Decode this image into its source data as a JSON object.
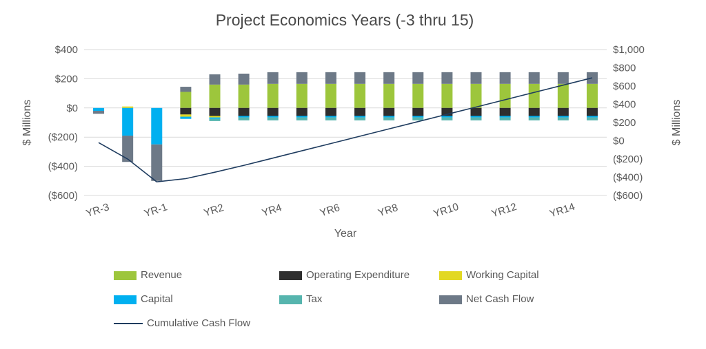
{
  "chart_data": {
    "type": "bar",
    "title": "Project Economics Years (-3 thru 15)",
    "xlabel": "Year",
    "ylabel_left": "$ Millions",
    "ylabel_right": "$ Millions",
    "categories": [
      "YR-3",
      "YR-2",
      "YR-1",
      "YR1",
      "YR2",
      "YR3",
      "YR4",
      "YR5",
      "YR6",
      "YR7",
      "YR8",
      "YR9",
      "YR10",
      "YR11",
      "YR12",
      "YR13",
      "YR14",
      "YR15"
    ],
    "x_tick_labels": [
      "YR-3",
      "YR-1",
      "YR2",
      "YR4",
      "YR6",
      "YR8",
      "YR10",
      "YR12",
      "YR14"
    ],
    "x_tick_every": 2,
    "left_axis": {
      "max": 400,
      "min": -600,
      "ticks": [
        {
          "value": 400,
          "label": "$400"
        },
        {
          "value": 200,
          "label": "$200"
        },
        {
          "value": 0,
          "label": "$0"
        },
        {
          "value": -200,
          "label": "($200)"
        },
        {
          "value": -400,
          "label": "($400)"
        },
        {
          "value": -600,
          "label": "($600)"
        }
      ]
    },
    "right_axis": {
      "max": 1000,
      "min": -600,
      "ticks": [
        {
          "value": 1000,
          "label": "$1,000"
        },
        {
          "value": 800,
          "label": "$800"
        },
        {
          "value": 600,
          "label": "$600"
        },
        {
          "value": 400,
          "label": "$400"
        },
        {
          "value": 200,
          "label": "$200"
        },
        {
          "value": 0,
          "label": "$0"
        },
        {
          "value": -200,
          "label": "($200)"
        },
        {
          "value": -400,
          "label": "($400)"
        },
        {
          "value": -600,
          "label": "($600)"
        }
      ]
    },
    "series": [
      {
        "name": "Revenue",
        "color": "#9DC63C",
        "values": [
          0,
          0,
          0,
          110,
          160,
          160,
          165,
          165,
          165,
          165,
          165,
          165,
          165,
          165,
          165,
          165,
          165,
          165
        ]
      },
      {
        "name": "Operating Expenditure",
        "color": "#2E2E2E",
        "values": [
          0,
          0,
          0,
          -45,
          -55,
          -55,
          -55,
          -55,
          -55,
          -55,
          -55,
          -55,
          -55,
          -55,
          -55,
          -55,
          -55,
          -55
        ]
      },
      {
        "name": "Working Capital",
        "color": "#E2D822",
        "values": [
          0,
          10,
          0,
          -15,
          -10,
          0,
          0,
          0,
          0,
          0,
          0,
          0,
          0,
          0,
          0,
          0,
          0,
          0
        ]
      },
      {
        "name": "Capital",
        "color": "#00B0F0",
        "values": [
          -20,
          -190,
          -250,
          -15,
          -10,
          -10,
          -10,
          -10,
          -10,
          -10,
          -10,
          -10,
          -10,
          -10,
          -10,
          -10,
          -10,
          -10
        ]
      },
      {
        "name": "Tax",
        "color": "#56B5AE",
        "values": [
          0,
          0,
          0,
          0,
          -15,
          -20,
          -20,
          -20,
          -20,
          -20,
          -20,
          -20,
          -20,
          -20,
          -20,
          -20,
          -20,
          -20
        ]
      },
      {
        "name": "Net Cash Flow",
        "color": "#6D7987",
        "values": [
          -20,
          -180,
          -250,
          35,
          70,
          75,
          80,
          80,
          80,
          80,
          80,
          80,
          80,
          80,
          80,
          80,
          80,
          80
        ]
      }
    ],
    "line_series": {
      "name": "Cumulative Cash Flow",
      "color": "#1F3C5F",
      "axis": "right",
      "values": [
        -20,
        -200,
        -450,
        -415,
        -345,
        -270,
        -190,
        -110,
        -30,
        50,
        130,
        210,
        290,
        370,
        450,
        530,
        610,
        690
      ]
    },
    "legend": [
      {
        "label": "Revenue",
        "color": "#9DC63C",
        "type": "box"
      },
      {
        "label": "Operating Expenditure",
        "color": "#2E2E2E",
        "type": "box"
      },
      {
        "label": "Working Capital",
        "color": "#E2D822",
        "type": "box"
      },
      {
        "label": "Capital",
        "color": "#00B0F0",
        "type": "box"
      },
      {
        "label": "Tax",
        "color": "#56B5AE",
        "type": "box"
      },
      {
        "label": "Net Cash Flow",
        "color": "#6D7987",
        "type": "box"
      },
      {
        "label": "Cumulative Cash Flow",
        "color": "#1F3C5F",
        "type": "line"
      }
    ],
    "colors": {
      "grid": "#D9D9D9",
      "text": "#595959",
      "background": "#FFFFFF"
    },
    "layout_hints": {
      "grid": "horizontal-on",
      "legend_position": "bottom"
    }
  }
}
